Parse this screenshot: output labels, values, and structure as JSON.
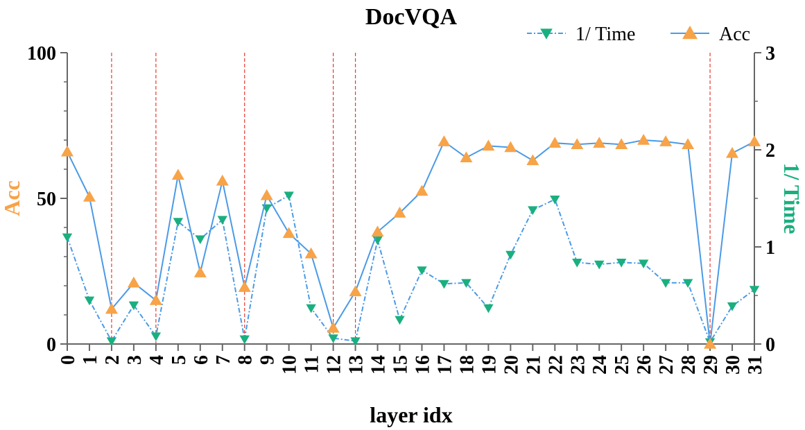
{
  "chart_data": {
    "type": "line",
    "title": "DocVQA",
    "xlabel": "layer idx",
    "ylabel_left": "Acc",
    "ylabel_right": "1/ Time",
    "categories": [
      "0",
      "1",
      "2",
      "3",
      "4",
      "5",
      "6",
      "7",
      "8",
      "9",
      "10",
      "11",
      "12",
      "13",
      "14",
      "15",
      "16",
      "17",
      "18",
      "19",
      "20",
      "21",
      "22",
      "23",
      "24",
      "25",
      "26",
      "27",
      "28",
      "29",
      "30",
      "31"
    ],
    "y_left_lim": [
      0,
      100
    ],
    "y_left_ticks": [
      "0",
      "50",
      "100"
    ],
    "y_right_lim": [
      0,
      3
    ],
    "y_right_ticks": [
      "0",
      "1",
      "2",
      "3"
    ],
    "legend_position": "top-right",
    "series": [
      {
        "name": "1/ Time",
        "axis": "right",
        "color": "#1aaf7f",
        "line_color": "#4a9ae6",
        "marker": "triangle-down",
        "line_style": "dash-dot",
        "values": [
          1.1,
          0.45,
          0.03,
          0.4,
          0.08,
          1.26,
          1.08,
          1.28,
          0.05,
          1.4,
          1.53,
          0.37,
          0.06,
          0.03,
          1.07,
          0.25,
          0.76,
          0.62,
          0.63,
          0.37,
          0.92,
          1.38,
          1.49,
          0.84,
          0.82,
          0.84,
          0.83,
          0.63,
          0.63,
          0.02,
          0.39,
          0.56
        ]
      },
      {
        "name": "Acc",
        "axis": "left",
        "color": "#f7a348",
        "line_color": "#4a9ae6",
        "marker": "triangle-up",
        "line_style": "solid",
        "values": [
          66,
          50.5,
          12,
          21,
          15,
          58,
          24.5,
          56,
          19.5,
          51,
          38,
          31,
          5.5,
          18,
          38.5,
          45,
          52.5,
          69.5,
          64,
          68,
          67.5,
          63,
          69,
          68.5,
          69,
          68.5,
          70,
          69.5,
          68.5,
          0,
          65.5,
          69.5
        ]
      }
    ],
    "highlighted_layers": [
      "2",
      "4",
      "8",
      "12",
      "13",
      "29"
    ],
    "highlight_color": "#e8392f"
  }
}
